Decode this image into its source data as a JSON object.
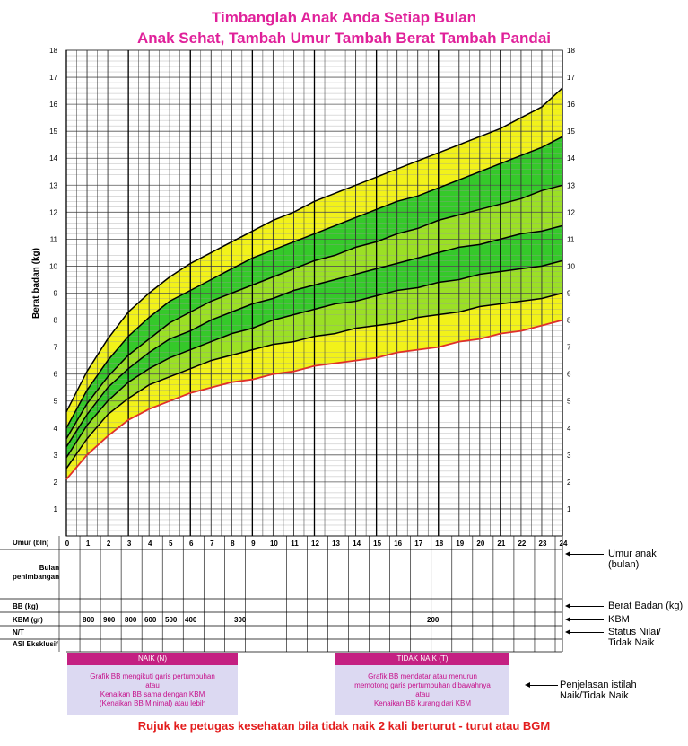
{
  "header": {
    "title_line1": "Timbanglah Anak Anda Setiap Bulan",
    "title_line2": "Anak Sehat, Tambah Umur  Tambah Berat  Tambah Pandai"
  },
  "chart_data": {
    "type": "line",
    "ylabel": "Berat badan (kg)",
    "ylim": [
      0,
      18
    ],
    "xlim": [
      0,
      24
    ],
    "x_ticks": [
      0,
      1,
      2,
      3,
      4,
      5,
      6,
      7,
      8,
      9,
      10,
      11,
      12,
      13,
      14,
      15,
      16,
      17,
      18,
      19,
      20,
      21,
      22,
      23,
      24
    ],
    "y_ticks": [
      1,
      2,
      3,
      4,
      5,
      6,
      7,
      8,
      9,
      10,
      11,
      12,
      13,
      14,
      15,
      16,
      17,
      18
    ],
    "x": [
      0,
      1,
      2,
      3,
      4,
      5,
      6,
      7,
      8,
      9,
      10,
      11,
      12,
      13,
      14,
      15,
      16,
      17,
      18,
      19,
      20,
      21,
      22,
      23,
      24
    ],
    "series": [
      {
        "values": [
          4.6,
          6.1,
          7.3,
          8.3,
          9.0,
          9.6,
          10.1,
          10.5,
          10.9,
          11.3,
          11.7,
          12.0,
          12.4,
          12.7,
          13.0,
          13.3,
          13.6,
          13.9,
          14.2,
          14.5,
          14.8,
          15.1,
          15.5,
          15.9,
          16.6
        ]
      },
      {
        "values": [
          4.0,
          5.4,
          6.5,
          7.4,
          8.1,
          8.7,
          9.1,
          9.5,
          9.9,
          10.3,
          10.6,
          10.9,
          11.2,
          11.5,
          11.8,
          12.1,
          12.4,
          12.6,
          12.9,
          13.2,
          13.5,
          13.8,
          14.1,
          14.4,
          14.8
        ]
      },
      {
        "values": [
          3.6,
          4.9,
          5.9,
          6.7,
          7.3,
          7.9,
          8.3,
          8.7,
          9.0,
          9.3,
          9.6,
          9.9,
          10.2,
          10.4,
          10.7,
          10.9,
          11.2,
          11.4,
          11.7,
          11.9,
          12.1,
          12.3,
          12.5,
          12.8,
          13.0
        ]
      },
      {
        "values": [
          3.3,
          4.5,
          5.5,
          6.2,
          6.8,
          7.3,
          7.6,
          8.0,
          8.3,
          8.6,
          8.8,
          9.1,
          9.3,
          9.5,
          9.7,
          9.9,
          10.1,
          10.3,
          10.5,
          10.7,
          10.8,
          11.0,
          11.2,
          11.3,
          11.5
        ]
      },
      {
        "values": [
          2.9,
          4.1,
          5.0,
          5.7,
          6.2,
          6.6,
          6.9,
          7.2,
          7.5,
          7.7,
          8.0,
          8.2,
          8.4,
          8.6,
          8.7,
          8.9,
          9.1,
          9.2,
          9.4,
          9.5,
          9.7,
          9.8,
          9.9,
          10.0,
          10.2
        ]
      },
      {
        "values": [
          2.5,
          3.6,
          4.5,
          5.1,
          5.6,
          5.9,
          6.2,
          6.5,
          6.7,
          6.9,
          7.1,
          7.2,
          7.4,
          7.5,
          7.7,
          7.8,
          7.9,
          8.1,
          8.2,
          8.3,
          8.5,
          8.6,
          8.7,
          8.8,
          9.0
        ]
      },
      {
        "values": [
          2.1,
          3.0,
          3.7,
          4.3,
          4.7,
          5.0,
          5.3,
          5.5,
          5.7,
          5.8,
          6.0,
          6.1,
          6.3,
          6.4,
          6.5,
          6.6,
          6.8,
          6.9,
          7.0,
          7.2,
          7.3,
          7.5,
          7.6,
          7.8,
          8.0
        ]
      }
    ],
    "band_colors": [
      "#f2f21a",
      "#35c92a",
      "#9be025",
      "#35c92a",
      "#9be025",
      "#f2f21a"
    ],
    "line_colors": {
      "bgm": "#e0302a",
      "curves": "#000000"
    }
  },
  "table": {
    "umur_label": "Umur (bln)",
    "bulan_label": "Bulan penimbangan",
    "bb_label": "BB (kg)",
    "kbm_label": "KBM (gr)",
    "nt_label": "N/T",
    "asi_label": "ASI Eksklusif",
    "kbm_values": [
      "800",
      "900",
      "800",
      "600",
      "500",
      "400"
    ],
    "kbm_mid": "300",
    "kbm_late": "200"
  },
  "right_labels": {
    "umur": "Umur anak (bulan)",
    "berat": "Berat Badan (kg)",
    "kbm": "KBM",
    "status": "Status Nilai/ Tidak Naik",
    "penjelasan": "Penjelasan istilah Naik/Tidak Naik"
  },
  "naik_box": {
    "head": "NAIK (N)",
    "line1": "Grafik BB mengikuti garis pertumbuhan",
    "line2": "atau",
    "line3": "Kenaikan BB sama dengan KBM",
    "line4": "(Kenaikan BB Minimal) atau lebih"
  },
  "tidak_box": {
    "head": "TIDAK NAIK (T)",
    "line1": "Grafik BB mendatar atau menurun",
    "line2": "memotong garis pertumbuhan dibawahnya",
    "line3": "atau",
    "line4": "Kenaikan BB kurang dari KBM"
  },
  "footer": "Rujuk ke petugas kesehatan bila tidak naik 2 kali berturut - turut atau BGM"
}
